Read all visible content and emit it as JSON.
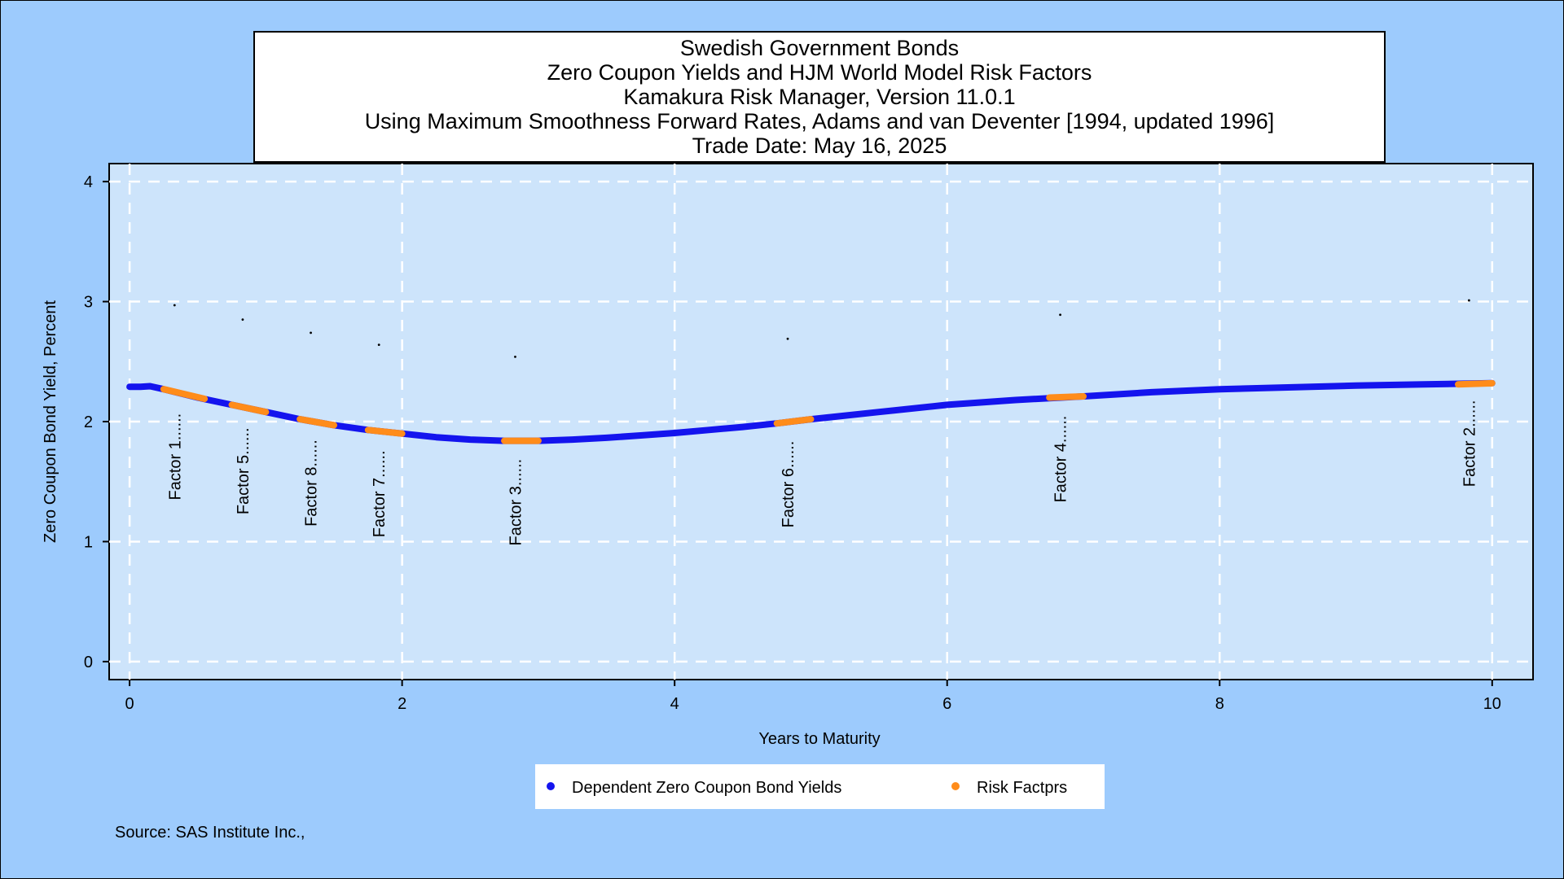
{
  "chart_data": {
    "type": "line",
    "title_lines": [
      "Swedish Government Bonds",
      "Zero Coupon Yields and HJM World Model Risk Factors",
      "Kamakura Risk Manager, Version 11.0.1",
      "Using Maximum Smoothness Forward Rates, Adams and van Deventer [1994, updated 1996]",
      "Trade Date: May 16, 2025"
    ],
    "xlabel": "Years to Maturity",
    "ylabel": "Zero Coupon Bond Yield, Percent",
    "xlim": [
      -0.15,
      10.3
    ],
    "ylim": [
      -0.15,
      4.15
    ],
    "x_ticks": [
      0,
      2,
      4,
      6,
      8,
      10
    ],
    "y_ticks": [
      0,
      1,
      2,
      3,
      4
    ],
    "x_tick_labels": [
      "0",
      "2",
      "4",
      "6",
      "8",
      "10"
    ],
    "y_tick_labels": [
      "0",
      "1",
      "2",
      "3",
      "4"
    ],
    "grid": true,
    "legend_position": "bottom",
    "series": [
      {
        "name": "Dependent Zero Coupon Bond Yields",
        "color": "#1414ee",
        "x": [
          0,
          0.08,
          0.15,
          0.25,
          0.5,
          0.75,
          1.0,
          1.25,
          1.5,
          1.75,
          2.0,
          2.25,
          2.5,
          2.75,
          3.0,
          3.25,
          3.5,
          3.75,
          4.0,
          4.25,
          4.5,
          4.75,
          5.0,
          5.5,
          6.0,
          6.5,
          7.0,
          7.5,
          8.0,
          8.5,
          9.0,
          9.5,
          10.0
        ],
        "y": [
          2.29,
          2.29,
          2.295,
          2.27,
          2.2,
          2.14,
          2.08,
          2.02,
          1.97,
          1.93,
          1.9,
          1.87,
          1.85,
          1.84,
          1.84,
          1.85,
          1.865,
          1.885,
          1.905,
          1.93,
          1.955,
          1.985,
          2.02,
          2.08,
          2.14,
          2.18,
          2.21,
          2.245,
          2.27,
          2.285,
          2.3,
          2.31,
          2.32
        ]
      },
      {
        "name": "Risk Factprs",
        "color": "#ff8c1a",
        "segments": [
          {
            "x": [
              0.25,
              0.55
            ],
            "y": [
              2.27,
              2.19
            ]
          },
          {
            "x": [
              0.75,
              1.0
            ],
            "y": [
              2.14,
              2.08
            ]
          },
          {
            "x": [
              1.25,
              1.5
            ],
            "y": [
              2.02,
              1.97
            ]
          },
          {
            "x": [
              1.75,
              2.0
            ],
            "y": [
              1.93,
              1.9
            ]
          },
          {
            "x": [
              2.75,
              3.0
            ],
            "y": [
              1.84,
              1.84
            ]
          },
          {
            "x": [
              4.75,
              5.0
            ],
            "y": [
              1.985,
              2.02
            ]
          },
          {
            "x": [
              6.75,
              7.0
            ],
            "y": [
              2.2,
              2.21
            ]
          },
          {
            "x": [
              9.75,
              10.0
            ],
            "y": [
              2.31,
              2.32
            ]
          }
        ]
      }
    ],
    "factor_labels": [
      {
        "text": "Factor 1......",
        "x": 0.33,
        "y_top": 2.11,
        "dot_y": 2.97
      },
      {
        "text": "Factor 5......",
        "x": 0.83,
        "y_top": 1.99,
        "dot_y": 2.85
      },
      {
        "text": "Factor 8......",
        "x": 1.33,
        "y_top": 1.89,
        "dot_y": 2.74
      },
      {
        "text": "Factor 7......",
        "x": 1.83,
        "y_top": 1.8,
        "dot_y": 2.64
      },
      {
        "text": "Factor 3......",
        "x": 2.83,
        "y_top": 1.73,
        "dot_y": 2.54
      },
      {
        "text": "Factor 6......",
        "x": 4.83,
        "y_top": 1.88,
        "dot_y": 2.69
      },
      {
        "text": "Factor 4......",
        "x": 6.83,
        "y_top": 2.09,
        "dot_y": 2.89
      },
      {
        "text": "Factor 2......",
        "x": 9.83,
        "y_top": 2.22,
        "dot_y": 3.01
      }
    ]
  },
  "legend": {
    "items": [
      {
        "label": "Dependent Zero Coupon Bond Yields",
        "color": "#1414ee"
      },
      {
        "label": "Risk Factprs",
        "color": "#ff8c1a"
      }
    ]
  },
  "source_text": "Source: SAS Institute Inc.,"
}
